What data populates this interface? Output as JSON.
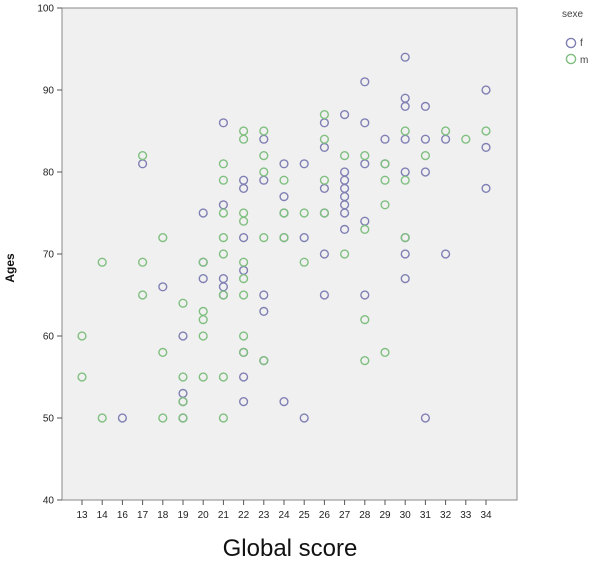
{
  "chart_data": {
    "type": "scatter",
    "title": "",
    "xlabel": "Global score",
    "ylabel": "Ages",
    "x_categories": [
      "13",
      "14",
      "16",
      "17",
      "18",
      "19",
      "20",
      "21",
      "22",
      "23",
      "24",
      "25",
      "26",
      "27",
      "28",
      "29",
      "30",
      "31",
      "32",
      "33",
      "34"
    ],
    "ylim": [
      40,
      100
    ],
    "yticks": [
      40,
      50,
      60,
      70,
      80,
      90,
      100
    ],
    "grid": false,
    "background": "#f0f0f0",
    "legend": {
      "title": "sexe",
      "position": "top-right"
    },
    "series": [
      {
        "name": "f",
        "color": "#7f7fb4",
        "points": [
          [
            16,
            50
          ],
          [
            17,
            81
          ],
          [
            18,
            66
          ],
          [
            19,
            50
          ],
          [
            19,
            53
          ],
          [
            19,
            52
          ],
          [
            19,
            60
          ],
          [
            20,
            75
          ],
          [
            20,
            67
          ],
          [
            20,
            69
          ],
          [
            21,
            86
          ],
          [
            21,
            76
          ],
          [
            21,
            67
          ],
          [
            21,
            66
          ],
          [
            21,
            65
          ],
          [
            22,
            79
          ],
          [
            22,
            78
          ],
          [
            22,
            72
          ],
          [
            22,
            68
          ],
          [
            22,
            58
          ],
          [
            22,
            55
          ],
          [
            22,
            52
          ],
          [
            23,
            84
          ],
          [
            23,
            79
          ],
          [
            23,
            65
          ],
          [
            23,
            63
          ],
          [
            23,
            57
          ],
          [
            24,
            81
          ],
          [
            24,
            77
          ],
          [
            24,
            75
          ],
          [
            24,
            72
          ],
          [
            24,
            52
          ],
          [
            25,
            81
          ],
          [
            25,
            72
          ],
          [
            25,
            50
          ],
          [
            26,
            86
          ],
          [
            26,
            83
          ],
          [
            26,
            78
          ],
          [
            26,
            75
          ],
          [
            26,
            70
          ],
          [
            26,
            65
          ],
          [
            27,
            87
          ],
          [
            27,
            80
          ],
          [
            27,
            79
          ],
          [
            27,
            78
          ],
          [
            27,
            77
          ],
          [
            27,
            76
          ],
          [
            27,
            75
          ],
          [
            27,
            73
          ],
          [
            28,
            91
          ],
          [
            28,
            86
          ],
          [
            28,
            81
          ],
          [
            28,
            74
          ],
          [
            28,
            65
          ],
          [
            29,
            84
          ],
          [
            29,
            81
          ],
          [
            30,
            94
          ],
          [
            30,
            89
          ],
          [
            30,
            88
          ],
          [
            30,
            84
          ],
          [
            30,
            80
          ],
          [
            30,
            72
          ],
          [
            30,
            70
          ],
          [
            30,
            67
          ],
          [
            31,
            88
          ],
          [
            31,
            84
          ],
          [
            31,
            80
          ],
          [
            31,
            50
          ],
          [
            32,
            84
          ],
          [
            32,
            70
          ],
          [
            34,
            90
          ],
          [
            34,
            83
          ],
          [
            34,
            78
          ]
        ]
      },
      {
        "name": "m",
        "color": "#7fbf7f",
        "points": [
          [
            13,
            60
          ],
          [
            13,
            55
          ],
          [
            14,
            69
          ],
          [
            14,
            50
          ],
          [
            17,
            82
          ],
          [
            17,
            69
          ],
          [
            17,
            65
          ],
          [
            18,
            72
          ],
          [
            18,
            58
          ],
          [
            18,
            50
          ],
          [
            19,
            64
          ],
          [
            19,
            55
          ],
          [
            19,
            52
          ],
          [
            19,
            50
          ],
          [
            20,
            69
          ],
          [
            20,
            63
          ],
          [
            20,
            62
          ],
          [
            20,
            60
          ],
          [
            20,
            55
          ],
          [
            21,
            81
          ],
          [
            21,
            79
          ],
          [
            21,
            75
          ],
          [
            21,
            72
          ],
          [
            21,
            70
          ],
          [
            21,
            65
          ],
          [
            21,
            55
          ],
          [
            21,
            50
          ],
          [
            22,
            85
          ],
          [
            22,
            84
          ],
          [
            22,
            75
          ],
          [
            22,
            74
          ],
          [
            22,
            69
          ],
          [
            22,
            67
          ],
          [
            22,
            65
          ],
          [
            22,
            60
          ],
          [
            22,
            58
          ],
          [
            23,
            85
          ],
          [
            23,
            82
          ],
          [
            23,
            80
          ],
          [
            23,
            72
          ],
          [
            23,
            57
          ],
          [
            24,
            79
          ],
          [
            24,
            75
          ],
          [
            24,
            72
          ],
          [
            25,
            75
          ],
          [
            25,
            69
          ],
          [
            26,
            87
          ],
          [
            26,
            84
          ],
          [
            26,
            79
          ],
          [
            26,
            75
          ],
          [
            27,
            82
          ],
          [
            27,
            70
          ],
          [
            28,
            82
          ],
          [
            28,
            73
          ],
          [
            28,
            62
          ],
          [
            28,
            57
          ],
          [
            29,
            81
          ],
          [
            29,
            79
          ],
          [
            29,
            76
          ],
          [
            29,
            58
          ],
          [
            30,
            85
          ],
          [
            30,
            79
          ],
          [
            30,
            72
          ],
          [
            31,
            82
          ],
          [
            32,
            85
          ],
          [
            33,
            84
          ],
          [
            34,
            85
          ]
        ]
      }
    ]
  }
}
